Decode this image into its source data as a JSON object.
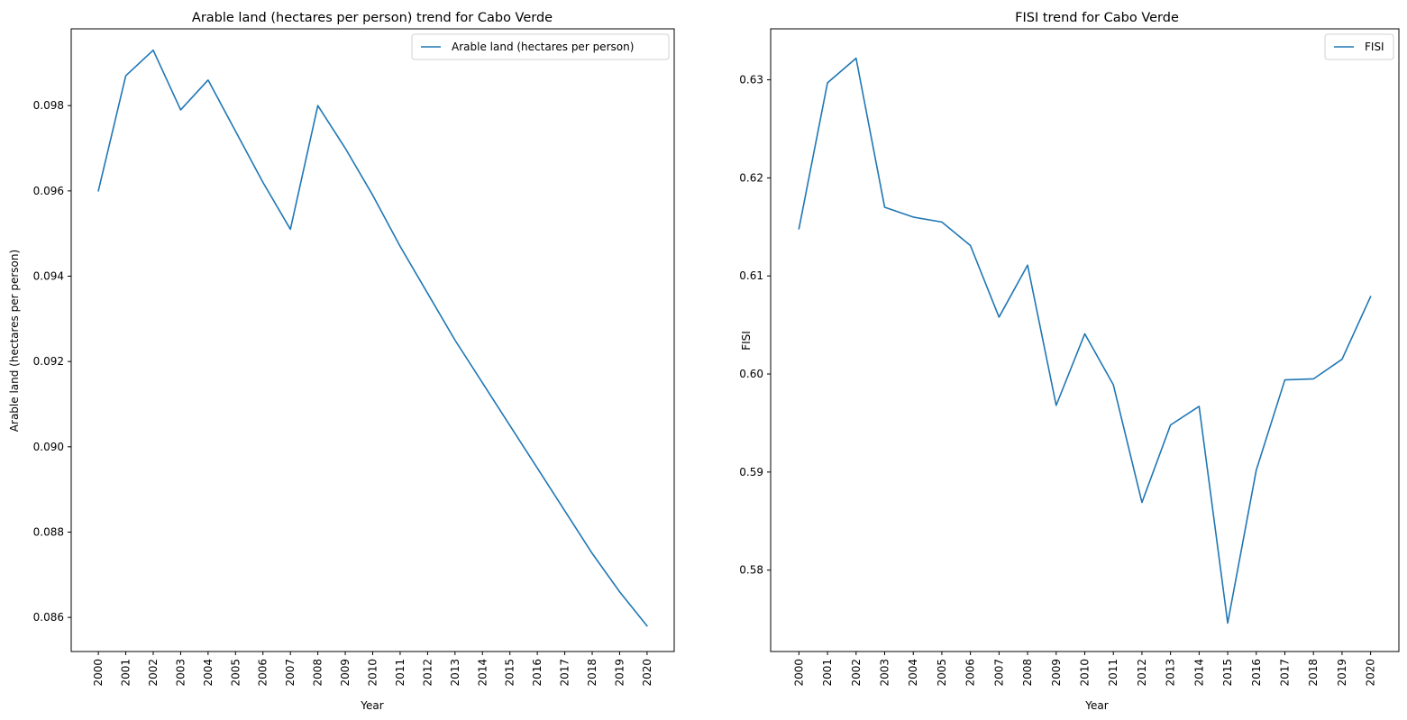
{
  "chart_data": [
    {
      "type": "line",
      "title": "Arable land (hectares per person) trend for Cabo Verde",
      "xlabel": "Year",
      "ylabel": "Arable land (hectares per person)",
      "x": [
        "2000",
        "2001",
        "2002",
        "2003",
        "2004",
        "2005",
        "2006",
        "2007",
        "2008",
        "2009",
        "2010",
        "2011",
        "2012",
        "2013",
        "2014",
        "2015",
        "2016",
        "2017",
        "2018",
        "2019",
        "2020"
      ],
      "ylim": [
        0.0852,
        0.0998
      ],
      "yticks": [
        "0.086",
        "0.088",
        "0.090",
        "0.092",
        "0.094",
        "0.096",
        "0.098"
      ],
      "legend_position": "top-right",
      "grid": false,
      "series": [
        {
          "name": "Arable land (hectares per person)",
          "color": "#1f77b4",
          "values": [
            0.096,
            0.0987,
            0.0993,
            0.0979,
            0.0986,
            0.0974,
            0.0962,
            0.0951,
            0.098,
            0.097,
            0.0959,
            0.0947,
            0.0936,
            0.0925,
            0.0915,
            0.0905,
            0.0895,
            0.0885,
            0.0875,
            0.0866,
            0.0858
          ]
        }
      ]
    },
    {
      "type": "line",
      "title": "FISI trend for Cabo Verde",
      "xlabel": "Year",
      "ylabel": "FISI",
      "x": [
        "2000",
        "2001",
        "2002",
        "2003",
        "2004",
        "2005",
        "2006",
        "2007",
        "2008",
        "2009",
        "2010",
        "2011",
        "2012",
        "2013",
        "2014",
        "2015",
        "2016",
        "2017",
        "2018",
        "2019",
        "2020"
      ],
      "ylim": [
        0.5717,
        0.6352
      ],
      "yticks": [
        "0.58",
        "0.59",
        "0.60",
        "0.61",
        "0.62",
        "0.63"
      ],
      "legend_position": "top-right",
      "grid": false,
      "series": [
        {
          "name": "FISI",
          "color": "#1f77b4",
          "values": [
            0.6148,
            0.6297,
            0.6322,
            0.617,
            0.616,
            0.6155,
            0.6131,
            0.6058,
            0.6111,
            0.5968,
            0.6041,
            0.5989,
            0.5869,
            0.5948,
            0.5967,
            0.5746,
            0.5902,
            0.5994,
            0.5995,
            0.6015,
            0.6079
          ]
        }
      ]
    }
  ]
}
